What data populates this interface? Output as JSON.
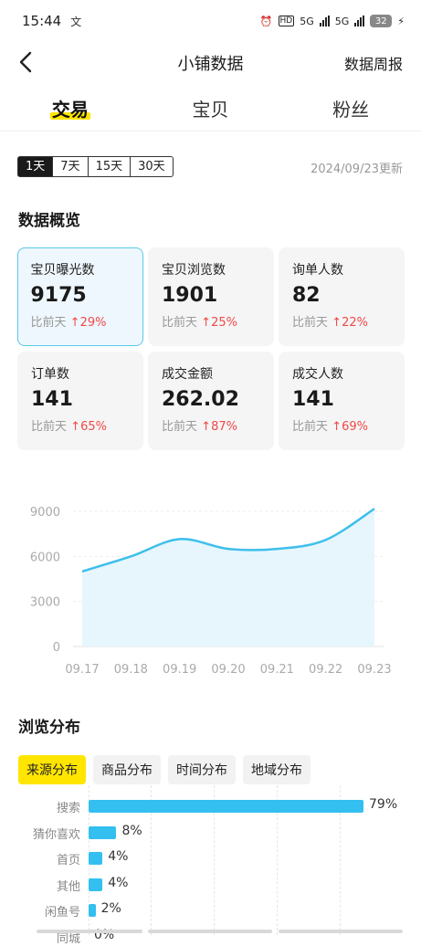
{
  "status": {
    "time": "15:44",
    "network": "5G",
    "battery": "32"
  },
  "nav": {
    "title": "小铺数据",
    "report": "数据周报"
  },
  "tabs": [
    {
      "label": "交易",
      "active": true
    },
    {
      "label": "宝贝",
      "active": false
    },
    {
      "label": "粉丝",
      "active": false
    }
  ],
  "period": {
    "options": [
      "1天",
      "7天",
      "15天",
      "30天"
    ],
    "selected": "1天"
  },
  "updated": "2024/09/23更新",
  "overview": {
    "title": "数据概览",
    "compare_label": "比前天",
    "cards": [
      {
        "label": "宝贝曝光数",
        "value": "9175",
        "change": "29%"
      },
      {
        "label": "宝贝浏览数",
        "value": "1901",
        "change": "25%"
      },
      {
        "label": "询单人数",
        "value": "82",
        "change": "22%"
      },
      {
        "label": "订单数",
        "value": "141",
        "change": "65%"
      },
      {
        "label": "成交金额",
        "value": "262.02",
        "change": "87%"
      },
      {
        "label": "成交人数",
        "value": "141",
        "change": "69%"
      }
    ]
  },
  "chart_data": {
    "type": "area",
    "x": [
      "09.17",
      "09.18",
      "09.19",
      "09.20",
      "09.21",
      "09.22",
      "09.23"
    ],
    "series": [
      {
        "values": [
          5000,
          6000,
          7150,
          6500,
          6500,
          7100,
          9175
        ]
      }
    ],
    "yticks": [
      "9000",
      "6000",
      "3000",
      "0"
    ],
    "ylim": [
      0,
      9000
    ],
    "grid": true,
    "color": "#3dbfec"
  },
  "distribution": {
    "title": "浏览分布",
    "tabs": [
      "来源分布",
      "商品分布",
      "时间分布",
      "地域分布"
    ],
    "active_tab": "来源分布",
    "rows": [
      {
        "label": "搜索",
        "percent": "79%",
        "value": 79
      },
      {
        "label": "猜你喜欢",
        "percent": "8%",
        "value": 8
      },
      {
        "label": "首页",
        "percent": "4%",
        "value": 4
      },
      {
        "label": "其他",
        "percent": "4%",
        "value": 4
      },
      {
        "label": "闲鱼号",
        "percent": "2%",
        "value": 2
      },
      {
        "label": "同城",
        "percent": "0%",
        "value": 0
      }
    ]
  }
}
